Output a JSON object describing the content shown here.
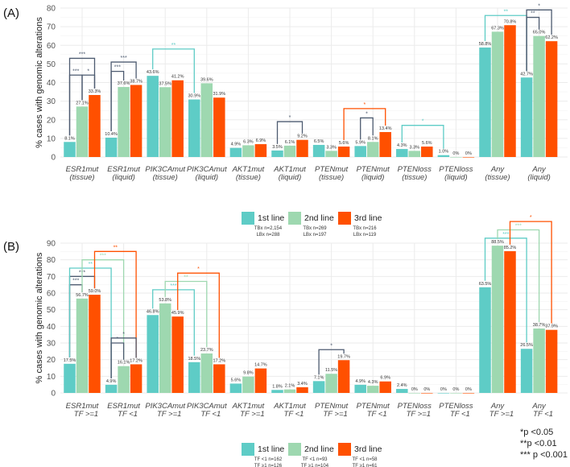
{
  "colors": {
    "first": "#5ECCC6",
    "second": "#9ED8B0",
    "third": "#FF5000",
    "dark": "#4D5B70",
    "grid": "#EBEBEB"
  },
  "significance_legend": [
    "*p <0.05",
    "**p <0.01",
    "*** p <0.001"
  ],
  "chart_data": [
    {
      "panel": "(A)",
      "type": "bar",
      "ylabel": "% cases with genomic alterations",
      "ylim": [
        0,
        80
      ],
      "yticks": [
        0,
        10,
        20,
        30,
        40,
        50,
        60,
        70,
        80
      ],
      "categories": [
        [
          "ESR1mut",
          "(tissue)"
        ],
        [
          "ESR1mut",
          "(liquid)"
        ],
        [
          "PIK3CAmut",
          "(tissue)"
        ],
        [
          "PIK3CAmut",
          "(liquid)"
        ],
        [
          "AKT1mut",
          "(tissue)"
        ],
        [
          "AKT1mut",
          "(liquid)"
        ],
        [
          "PTENmut",
          "(tissue)"
        ],
        [
          "PTENmut",
          "(liquid)"
        ],
        [
          "PTENloss",
          "(tissue)"
        ],
        [
          "PTENloss",
          "(liquid)"
        ],
        [
          "Any",
          "(tissue)"
        ],
        [
          "Any",
          "(liquid)"
        ]
      ],
      "series": [
        {
          "name": "1st line",
          "n": [
            "TBx n=2,154",
            "LBx n=288"
          ],
          "values": [
            8.1,
            10.4,
            43.6,
            30.9,
            4.9,
            3.5,
            6.5,
            5.9,
            4.3,
            1.0,
            58.8,
            42.7
          ]
        },
        {
          "name": "2nd line",
          "n": [
            "TBx n=269",
            "LBx n=197"
          ],
          "values": [
            27.1,
            37.6,
            37.5,
            39.6,
            6.3,
            6.1,
            3.3,
            8.1,
            3.3,
            0,
            67.3,
            65.0
          ]
        },
        {
          "name": "3rd line",
          "n": [
            "TBx n=216",
            "LBx n=119"
          ],
          "values": [
            33.3,
            38.7,
            41.2,
            31.9,
            6.9,
            9.2,
            5.6,
            13.4,
            5.6,
            0,
            70.8,
            62.2
          ]
        }
      ],
      "data_labels": [
        [
          "8.1%",
          "10.4%",
          "43.6%",
          "30.9%",
          "4.9%",
          "3.5%",
          "6.5%",
          "5.9%",
          "4.3%",
          "1.0%",
          "58.8%",
          "42.7%"
        ],
        [
          "27.1%",
          "37.6%",
          "37.5%",
          "39.6%",
          "6.3%",
          "6.1%",
          "3.3%",
          "8.1%",
          "3.3%",
          "0%",
          "67.3%",
          "65.0%"
        ],
        [
          "33.3%",
          "38.7%",
          "41.2%",
          "31.9%",
          "6.9%",
          "9.2%",
          "5.6%",
          "13.4%",
          "5.6%",
          "0%",
          "70.8%",
          "62.2%"
        ]
      ],
      "brackets": [
        {
          "from": [
            0,
            0
          ],
          "to": [
            0,
            2
          ],
          "y": 53,
          "label": "***",
          "color": "dark"
        },
        {
          "from": [
            0,
            0
          ],
          "to": [
            0,
            1
          ],
          "y": 44,
          "label": "***",
          "color": "dark"
        },
        {
          "from": [
            0,
            1
          ],
          "to": [
            0,
            2
          ],
          "y": 44,
          "label": "*",
          "color": "dark"
        },
        {
          "from": [
            1,
            0
          ],
          "to": [
            1,
            2
          ],
          "y": 51,
          "label": "***",
          "color": "dark"
        },
        {
          "from": [
            1,
            0
          ],
          "to": [
            1,
            1
          ],
          "y": 46,
          "label": "***",
          "color": "dark"
        },
        {
          "from": [
            2,
            0
          ],
          "to": [
            3,
            0
          ],
          "y": 58,
          "label": "**",
          "color": "first"
        },
        {
          "from": [
            5,
            0
          ],
          "to": [
            5,
            2
          ],
          "y": 19,
          "label": "*",
          "color": "dark"
        },
        {
          "from": [
            6,
            2
          ],
          "to": [
            7,
            2
          ],
          "y": 26,
          "label": "*",
          "color": "third"
        },
        {
          "from": [
            7,
            0
          ],
          "to": [
            7,
            1
          ],
          "y": 21,
          "label": "*",
          "color": "dark"
        },
        {
          "from": [
            8,
            0
          ],
          "to": [
            9,
            0
          ],
          "y": 17,
          "label": "*",
          "color": "first"
        },
        {
          "from": [
            10,
            0
          ],
          "to": [
            11,
            0
          ],
          "y": 76,
          "label": "**",
          "color": "first"
        },
        {
          "from": [
            11,
            0
          ],
          "to": [
            11,
            1
          ],
          "y": 75,
          "label": "**",
          "color": "dark"
        },
        {
          "from": [
            11,
            0
          ],
          "to": [
            11,
            2
          ],
          "y": 79,
          "label": "*",
          "color": "dark"
        }
      ]
    },
    {
      "panel": "(B)",
      "type": "bar",
      "ylabel": "% cases with genomic alterations",
      "ylim": [
        0,
        90
      ],
      "yticks": [
        0,
        10,
        20,
        30,
        40,
        50,
        60,
        70,
        80,
        90
      ],
      "categories": [
        [
          "ESR1mut",
          "TF >=1"
        ],
        [
          "ESR1mut",
          "TF <1"
        ],
        [
          "PIK3CAmut",
          "TF >=1"
        ],
        [
          "PIK3CAmut",
          "TF <1"
        ],
        [
          "AKT1mut",
          "TF >=1"
        ],
        [
          "AKT1mut",
          "TF <1"
        ],
        [
          "PTENmut",
          "TF >=1"
        ],
        [
          "PTENmut",
          "TF <1"
        ],
        [
          "PTENloss",
          "TF >=1"
        ],
        [
          "PTENloss",
          "TF <1"
        ],
        [
          "Any",
          "TF >=1"
        ],
        [
          "Any",
          "TF <1"
        ]
      ],
      "series": [
        {
          "name": "1st line",
          "n": [
            "TF <1 n=162",
            "TF ≥1 n=126"
          ],
          "values": [
            17.5,
            4.9,
            46.8,
            18.5,
            5.6,
            1.8,
            7.1,
            4.9,
            2.4,
            0,
            63.5,
            26.5
          ]
        },
        {
          "name": "2nd line",
          "n": [
            "TF <1 n=93",
            "TF ≥1 n=104"
          ],
          "values": [
            56.7,
            16.1,
            53.8,
            23.7,
            9.8,
            2.1,
            11.5,
            4.3,
            0,
            0,
            88.5,
            38.7
          ]
        },
        {
          "name": "3rd line",
          "n": [
            "TF <1 n=58",
            "TF ≥1 n=61"
          ],
          "values": [
            59.0,
            17.2,
            45.9,
            17.2,
            14.7,
            3.4,
            19.7,
            6.9,
            0,
            0,
            85.2,
            37.9
          ]
        }
      ],
      "data_labels": [
        [
          "17.5%",
          "4.9%",
          "46.8%",
          "18.5%",
          "5.6%",
          "1.8%",
          "7.1%",
          "4.9%",
          "2.4%",
          "0%",
          "63.5%",
          "26.5%"
        ],
        [
          "56.7%",
          "16.1%",
          "53.8%",
          "23.7%",
          "9.8%",
          "2.1%",
          "11.5%",
          "4.3%",
          "0%",
          "0%",
          "88.5%",
          "38.7%"
        ],
        [
          "59.0%",
          "17.2%",
          "45.9%",
          "17.2%",
          "14.7%",
          "3.4%",
          "19.7%",
          "6.9%",
          "0%",
          "0%",
          "85.2%",
          "37.9%"
        ]
      ],
      "brackets": [
        {
          "from": [
            0,
            0
          ],
          "to": [
            0,
            2
          ],
          "y": 70,
          "label": "***",
          "color": "dark"
        },
        {
          "from": [
            0,
            0
          ],
          "to": [
            0,
            1
          ],
          "y": 65,
          "label": "***",
          "color": "dark"
        },
        {
          "from": [
            0,
            0
          ],
          "to": [
            1,
            0
          ],
          "y": 75,
          "label": "**",
          "color": "first"
        },
        {
          "from": [
            0,
            1
          ],
          "to": [
            1,
            1
          ],
          "y": 80,
          "label": "***",
          "color": "second"
        },
        {
          "from": [
            0,
            2
          ],
          "to": [
            1,
            2
          ],
          "y": 85,
          "label": "**",
          "color": "third"
        },
        {
          "from": [
            1,
            0
          ],
          "to": [
            1,
            2
          ],
          "y": 33,
          "label": "*",
          "color": "dark"
        },
        {
          "from": [
            1,
            0
          ],
          "to": [
            1,
            1
          ],
          "y": 30,
          "label": "*",
          "color": "dark"
        },
        {
          "from": [
            2,
            0
          ],
          "to": [
            3,
            0
          ],
          "y": 62,
          "label": "***",
          "color": "first"
        },
        {
          "from": [
            2,
            1
          ],
          "to": [
            3,
            1
          ],
          "y": 67,
          "label": "**",
          "color": "second"
        },
        {
          "from": [
            2,
            2
          ],
          "to": [
            3,
            2
          ],
          "y": 72,
          "label": "*",
          "color": "third"
        },
        {
          "from": [
            6,
            0
          ],
          "to": [
            6,
            2
          ],
          "y": 26,
          "label": "*",
          "color": "dark"
        },
        {
          "from": [
            10,
            0
          ],
          "to": [
            11,
            0
          ],
          "y": 93,
          "label": "***",
          "color": "first"
        },
        {
          "from": [
            10,
            1
          ],
          "to": [
            11,
            1
          ],
          "y": 98,
          "label": "***",
          "color": "second"
        },
        {
          "from": [
            10,
            2
          ],
          "to": [
            11,
            2
          ],
          "y": 103,
          "label": "*",
          "color": "third"
        }
      ]
    }
  ]
}
